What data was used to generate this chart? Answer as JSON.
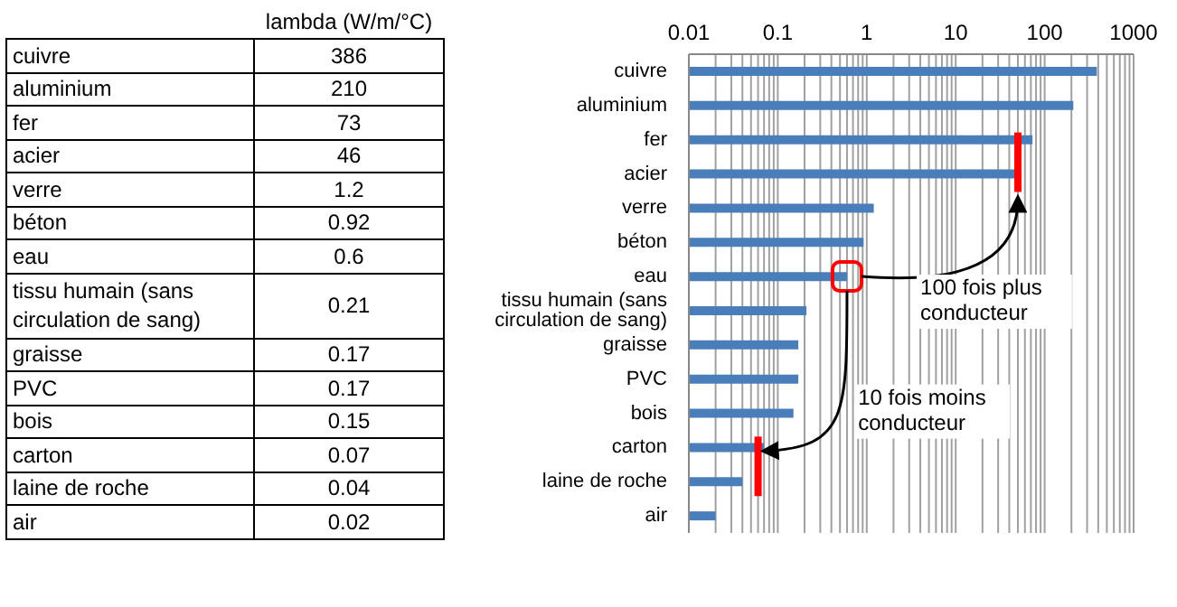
{
  "chart_data": [
    {
      "type": "other",
      "xlabel": "lambda (W/m/°C)",
      "categories": [
        "cuivre",
        "aluminium",
        "fer",
        "acier",
        "verre",
        "béton",
        "eau",
        "tissu humain (sans circulation de sang)",
        "graisse",
        "PVC",
        "bois",
        "carton",
        "laine de roche",
        "air"
      ],
      "values": [
        386,
        210,
        73,
        46,
        1.2,
        0.92,
        0.6,
        0.21,
        0.17,
        0.17,
        0.15,
        0.07,
        0.04,
        0.02
      ],
      "data_labels": true
    },
    {
      "type": "bar",
      "orientation": "horizontal",
      "log": "x",
      "categories": [
        "cuivre",
        "aluminium",
        "fer",
        "acier",
        "verre",
        "béton",
        "eau",
        "tissu humain (sans circulation de sang)",
        "graisse",
        "PVC",
        "bois",
        "carton",
        "laine de roche",
        "air"
      ],
      "values": [
        386,
        210,
        73,
        46,
        1.2,
        0.92,
        0.6,
        0.21,
        0.17,
        0.17,
        0.15,
        0.07,
        0.04,
        0.02
      ],
      "color": "#4a7ebb",
      "xlim": [
        0.01,
        1000
      ],
      "xticks": [
        0.01,
        {
          "value": 0.02,
          "label": null
        },
        {
          "value": 0.03,
          "label": null
        },
        {
          "value": 0.04,
          "label": null
        },
        {
          "value": 0.05,
          "label": null
        },
        {
          "value": 0.06,
          "label": null
        },
        {
          "value": 0.07,
          "label": null
        },
        {
          "value": 0.08,
          "label": null
        },
        {
          "value": 0.09,
          "label": null
        },
        0.1,
        {
          "value": 0.2,
          "label": null
        },
        {
          "value": 0.3,
          "label": null
        },
        {
          "value": 0.4,
          "label": null
        },
        {
          "value": 0.5,
          "label": null
        },
        {
          "value": 0.6,
          "label": null
        },
        {
          "value": 0.7,
          "label": null
        },
        {
          "value": 0.8,
          "label": null
        },
        {
          "value": 0.9,
          "label": null
        },
        1,
        {
          "value": 2,
          "label": null
        },
        {
          "value": 3,
          "label": null
        },
        {
          "value": 4,
          "label": null
        },
        {
          "value": 5,
          "label": null
        },
        {
          "value": 6,
          "label": null
        },
        {
          "value": 7,
          "label": null
        },
        {
          "value": 8,
          "label": null
        },
        {
          "value": 9,
          "label": null
        },
        10,
        {
          "value": 20,
          "label": null
        },
        {
          "value": 30,
          "label": null
        },
        {
          "value": 40,
          "label": null
        },
        {
          "value": 50,
          "label": null
        },
        {
          "value": 60,
          "label": null
        },
        {
          "value": 70,
          "label": null
        },
        {
          "value": 80,
          "label": null
        },
        {
          "value": 90,
          "label": null
        },
        100,
        {
          "value": 200,
          "label": null
        },
        {
          "value": 300,
          "label": null
        },
        {
          "value": 400,
          "label": null
        },
        {
          "value": 500,
          "label": null
        },
        {
          "value": 600,
          "label": null
        },
        {
          "value": 700,
          "label": null
        },
        {
          "value": 800,
          "label": null
        },
        {
          "value": 900,
          "label": null
        },
        1000
      ],
      "grid": "x",
      "annotations": [
        "100 fois plus conducteur",
        "10 fois moins conducteur"
      ]
    }
  ]
}
